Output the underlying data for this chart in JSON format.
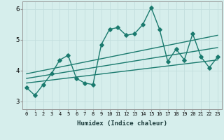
{
  "xlabel": "Humidex (Indice chaleur)",
  "background_color": "#d6eeec",
  "line_color": "#1a7a6e",
  "xlim": [
    -0.5,
    23.5
  ],
  "ylim": [
    2.75,
    6.25
  ],
  "yticks": [
    3,
    4,
    5,
    6
  ],
  "xticks": [
    0,
    1,
    2,
    3,
    4,
    5,
    6,
    7,
    8,
    9,
    10,
    11,
    12,
    13,
    14,
    15,
    16,
    17,
    18,
    19,
    20,
    21,
    22,
    23
  ],
  "series1_x": [
    0,
    1,
    2,
    3,
    4,
    5,
    6,
    7,
    8,
    9,
    10,
    11,
    12,
    13,
    14,
    15,
    16,
    17,
    18,
    19,
    20,
    21,
    22,
    23
  ],
  "series1_y": [
    3.45,
    3.2,
    3.55,
    3.9,
    4.35,
    4.5,
    3.75,
    3.6,
    3.55,
    4.85,
    5.35,
    5.4,
    5.15,
    5.2,
    5.5,
    6.05,
    5.35,
    4.3,
    4.7,
    4.35,
    5.2,
    4.45,
    4.1,
    4.45
  ],
  "trend1_x": [
    0,
    23
  ],
  "trend1_y": [
    3.6,
    4.35
  ],
  "trend2_x": [
    0,
    23
  ],
  "trend2_y": [
    3.75,
    4.75
  ],
  "trend3_x": [
    0,
    23
  ],
  "trend3_y": [
    3.9,
    5.15
  ],
  "grid_color": "#c2dedd",
  "marker": "D",
  "marker_size": 2.8,
  "line_width": 1.0
}
